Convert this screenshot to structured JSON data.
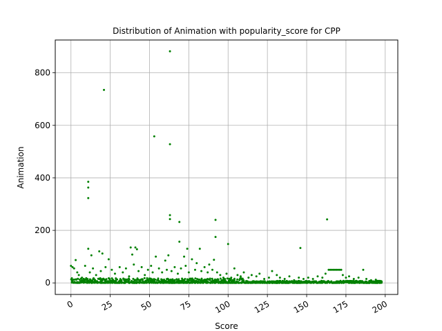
{
  "chart_data": {
    "type": "scatter",
    "title": "Distribution of Animation with popularity_score for CPP",
    "xlabel": "Score",
    "ylabel": "Animation",
    "xlim": [
      -10,
      208
    ],
    "ylim": [
      -44,
      925
    ],
    "xticks": [
      0,
      25,
      50,
      75,
      100,
      125,
      150,
      175,
      200
    ],
    "yticks": [
      0,
      200,
      400,
      600,
      800
    ],
    "x_tick_rotation": 30,
    "grid": true,
    "marker_color": "#008000",
    "outliers": [
      [
        63,
        882
      ],
      [
        21,
        735
      ],
      [
        53,
        558
      ],
      [
        63,
        528
      ],
      [
        11,
        385
      ],
      [
        11,
        363
      ],
      [
        11,
        323
      ],
      [
        63,
        258
      ],
      [
        63,
        243
      ],
      [
        69,
        232
      ],
      [
        163,
        242
      ],
      [
        92,
        240
      ],
      [
        92,
        175
      ],
      [
        69,
        157
      ],
      [
        100,
        148
      ],
      [
        146,
        133
      ],
      [
        38,
        135
      ],
      [
        41,
        135
      ],
      [
        42,
        128
      ],
      [
        11,
        130
      ],
      [
        18,
        120
      ],
      [
        20,
        112
      ],
      [
        13,
        105
      ],
      [
        74,
        130
      ],
      [
        82,
        130
      ],
      [
        39,
        108
      ]
    ],
    "dense_points": [
      [
        0,
        65
      ],
      [
        1,
        60
      ],
      [
        2,
        55
      ],
      [
        3,
        87
      ],
      [
        4,
        40
      ],
      [
        5,
        30
      ],
      [
        7,
        20
      ],
      [
        9,
        65
      ],
      [
        12,
        40
      ],
      [
        14,
        55
      ],
      [
        16,
        30
      ],
      [
        19,
        45
      ],
      [
        22,
        60
      ],
      [
        24,
        90
      ],
      [
        26,
        50
      ],
      [
        28,
        35
      ],
      [
        31,
        60
      ],
      [
        33,
        40
      ],
      [
        35,
        55
      ],
      [
        37,
        25
      ],
      [
        40,
        70
      ],
      [
        43,
        45
      ],
      [
        45,
        60
      ],
      [
        47,
        30
      ],
      [
        49,
        50
      ],
      [
        51,
        65
      ],
      [
        52,
        40
      ],
      [
        54,
        100
      ],
      [
        56,
        55
      ],
      [
        58,
        40
      ],
      [
        60,
        85
      ],
      [
        61,
        50
      ],
      [
        62,
        105
      ],
      [
        64,
        45
      ],
      [
        66,
        60
      ],
      [
        68,
        35
      ],
      [
        70,
        55
      ],
      [
        72,
        100
      ],
      [
        73,
        65
      ],
      [
        75,
        40
      ],
      [
        77,
        90
      ],
      [
        79,
        50
      ],
      [
        80,
        75
      ],
      [
        83,
        45
      ],
      [
        85,
        60
      ],
      [
        87,
        40
      ],
      [
        88,
        70
      ],
      [
        90,
        50
      ],
      [
        91,
        88
      ],
      [
        93,
        40
      ],
      [
        95,
        30
      ],
      [
        97,
        20
      ],
      [
        99,
        35
      ],
      [
        102,
        20
      ],
      [
        104,
        55
      ],
      [
        106,
        30
      ],
      [
        108,
        25
      ],
      [
        110,
        40
      ],
      [
        113,
        20
      ],
      [
        115,
        30
      ],
      [
        118,
        25
      ],
      [
        120,
        35
      ],
      [
        123,
        15
      ],
      [
        126,
        20
      ],
      [
        128,
        45
      ],
      [
        131,
        30
      ],
      [
        133,
        20
      ],
      [
        136,
        15
      ],
      [
        139,
        25
      ],
      [
        142,
        10
      ],
      [
        145,
        20
      ],
      [
        148,
        15
      ],
      [
        151,
        20
      ],
      [
        154,
        15
      ],
      [
        157,
        25
      ],
      [
        160,
        20
      ],
      [
        162,
        35
      ],
      [
        164,
        50
      ],
      [
        165,
        50
      ],
      [
        166,
        50
      ],
      [
        167,
        50
      ],
      [
        168,
        50
      ],
      [
        169,
        50
      ],
      [
        170,
        50
      ],
      [
        171,
        50
      ],
      [
        172,
        50
      ],
      [
        173,
        30
      ],
      [
        175,
        20
      ],
      [
        177,
        25
      ],
      [
        180,
        15
      ],
      [
        183,
        20
      ],
      [
        186,
        50
      ],
      [
        188,
        15
      ],
      [
        191,
        10
      ],
      [
        194,
        12
      ],
      [
        196,
        8
      ],
      [
        197,
        5
      ]
    ]
  }
}
